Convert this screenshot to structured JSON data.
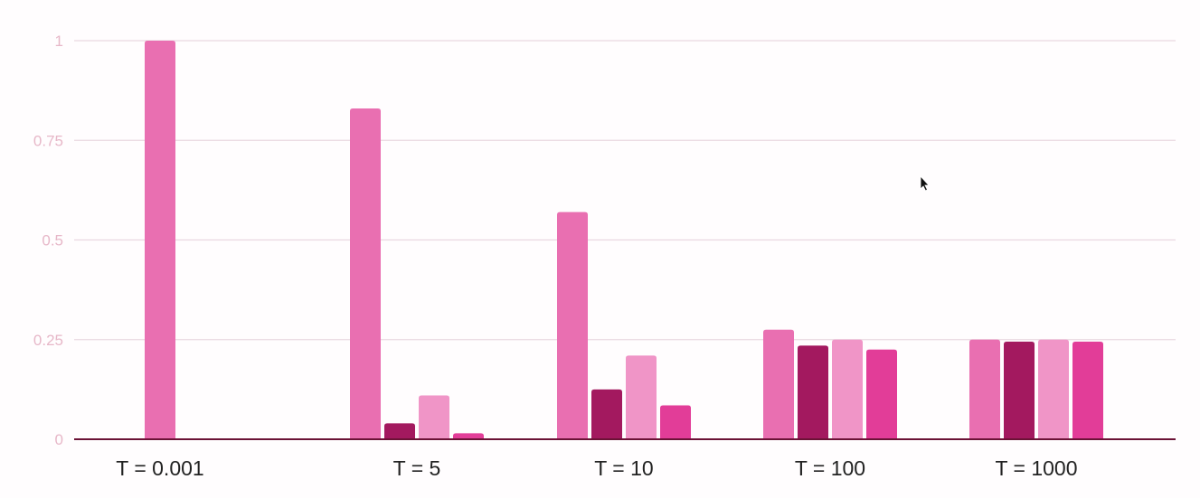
{
  "chart_data": {
    "type": "bar",
    "title": "",
    "xlabel": "",
    "ylabel": "",
    "ylim": [
      0,
      1
    ],
    "y_ticks": [
      {
        "value": 0,
        "label": "0"
      },
      {
        "value": 0.25,
        "label": "0.25"
      },
      {
        "value": 0.5,
        "label": "0.5"
      },
      {
        "value": 0.75,
        "label": "0.75"
      },
      {
        "value": 1,
        "label": "1"
      }
    ],
    "grid": true,
    "legend": "none",
    "categories": [
      "T = 0.001",
      "T = 5",
      "T = 10",
      "T = 100",
      "T = 1000"
    ],
    "series": [
      {
        "color": "#e96fb1",
        "values": [
          1.0,
          0.83,
          0.57,
          0.275,
          0.25
        ]
      },
      {
        "color": "#a3195f",
        "values": [
          0.0,
          0.04,
          0.125,
          0.235,
          0.245
        ]
      },
      {
        "color": "#f095c7",
        "values": [
          0.0,
          0.11,
          0.21,
          0.25,
          0.25
        ]
      },
      {
        "color": "#e23d98",
        "values": [
          0.0,
          0.015,
          0.085,
          0.225,
          0.245
        ]
      }
    ],
    "colors": {
      "grid": "#ead8e1",
      "axis": "#6b1236",
      "tick_text": "#e7b7c8",
      "category_text": "#222222"
    }
  },
  "cursor": {
    "icon": "mouse-pointer-icon"
  }
}
